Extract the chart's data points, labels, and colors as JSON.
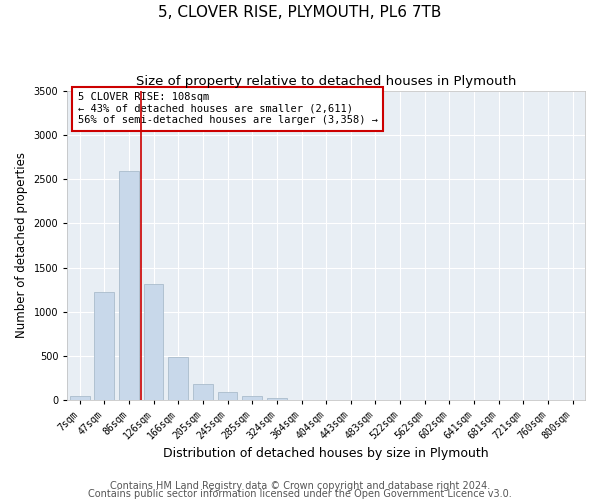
{
  "title": "5, CLOVER RISE, PLYMOUTH, PL6 7TB",
  "subtitle": "Size of property relative to detached houses in Plymouth",
  "xlabel": "Distribution of detached houses by size in Plymouth",
  "ylabel": "Number of detached properties",
  "categories": [
    "7sqm",
    "47sqm",
    "86sqm",
    "126sqm",
    "166sqm",
    "205sqm",
    "245sqm",
    "285sqm",
    "324sqm",
    "364sqm",
    "404sqm",
    "443sqm",
    "483sqm",
    "522sqm",
    "562sqm",
    "602sqm",
    "641sqm",
    "681sqm",
    "721sqm",
    "760sqm",
    "800sqm"
  ],
  "values": [
    50,
    1220,
    2590,
    1310,
    490,
    185,
    90,
    50,
    30,
    0,
    0,
    0,
    0,
    0,
    0,
    0,
    0,
    0,
    0,
    0,
    0
  ],
  "bar_color": "#c8d8ea",
  "bar_edge_color": "#aabccc",
  "ylim": [
    0,
    3500
  ],
  "yticks": [
    0,
    500,
    1000,
    1500,
    2000,
    2500,
    3000,
    3500
  ],
  "property_line_x": 2.5,
  "annotation_line1": "5 CLOVER RISE: 108sqm",
  "annotation_line2": "← 43% of detached houses are smaller (2,611)",
  "annotation_line3": "56% of semi-detached houses are larger (3,358) →",
  "annotation_box_color": "#ffffff",
  "annotation_box_edge": "#cc0000",
  "vline_color": "#cc0000",
  "footer1": "Contains HM Land Registry data © Crown copyright and database right 2024.",
  "footer2": "Contains public sector information licensed under the Open Government Licence v3.0.",
  "fig_bg_color": "#ffffff",
  "plot_bg_color": "#e8eef4",
  "grid_color": "#ffffff",
  "title_fontsize": 11,
  "subtitle_fontsize": 9.5,
  "ylabel_fontsize": 8.5,
  "xlabel_fontsize": 9,
  "tick_fontsize": 7,
  "annotation_fontsize": 7.5,
  "footer_fontsize": 7
}
